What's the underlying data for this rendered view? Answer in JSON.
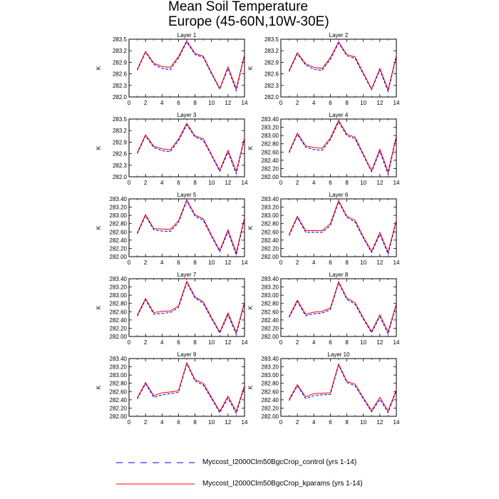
{
  "figure": {
    "title_line1": "Mean Soil Temperature",
    "title_line2": "Europe (45-60N,10W-30E)"
  },
  "legend": {
    "entries": [
      {
        "label": "Myccost_I2000Clm50BgcCrop_control (yrs 1-14)",
        "color": "#0000ff",
        "style": "dashed"
      },
      {
        "label": "Myccost_I2000Clm50BgcCrop_kparams (yrs 1-14)",
        "color": "#ff0000",
        "style": "solid"
      }
    ]
  },
  "chart_data": [
    {
      "type": "line",
      "title": "Layer 1",
      "ylabel": "K",
      "x": [
        0,
        1,
        2,
        3,
        4,
        5,
        6,
        7,
        8,
        9,
        10,
        11,
        12,
        13,
        14
      ],
      "xlim": [
        0,
        14
      ],
      "xticks": [
        "0",
        "2",
        "4",
        "6",
        "8",
        "10",
        "12",
        "14"
      ],
      "ylim": [
        282.0,
        283.5
      ],
      "yticks": [
        "282.0",
        "282.3",
        "282.6",
        "282.9",
        "283.2",
        "283.5"
      ],
      "series": [
        {
          "name": "Myccost_I2000Clm50BgcCrop_control (yrs 1-14)",
          "values": [
            null,
            282.69,
            283.16,
            282.85,
            282.74,
            282.71,
            283.01,
            283.43,
            283.1,
            283.03,
            282.6,
            282.2,
            282.74,
            282.16,
            283.08
          ]
        },
        {
          "name": "Myccost_I2000Clm50BgcCrop_kparams (yrs 1-14)",
          "values": [
            null,
            282.72,
            283.18,
            282.88,
            282.79,
            282.77,
            283.05,
            283.46,
            283.13,
            283.06,
            282.63,
            282.22,
            282.78,
            282.22,
            283.1
          ]
        }
      ]
    },
    {
      "type": "line",
      "title": "Layer 2",
      "ylabel": "K",
      "x": [
        0,
        1,
        2,
        3,
        4,
        5,
        6,
        7,
        8,
        9,
        10,
        11,
        12,
        13,
        14
      ],
      "xlim": [
        0,
        14
      ],
      "xticks": [
        "0",
        "2",
        "4",
        "6",
        "8",
        "10",
        "12",
        "14"
      ],
      "ylim": [
        282.0,
        283.5
      ],
      "yticks": [
        "282.0",
        "282.3",
        "282.6",
        "282.9",
        "283.2",
        "283.5"
      ],
      "series": [
        {
          "name": "Myccost_I2000Clm50BgcCrop_control (yrs 1-14)",
          "values": [
            null,
            282.66,
            283.12,
            282.83,
            282.72,
            282.69,
            282.98,
            283.4,
            283.07,
            283.0,
            282.59,
            282.19,
            282.7,
            282.14,
            283.05
          ]
        },
        {
          "name": "Myccost_I2000Clm50BgcCrop_kparams (yrs 1-14)",
          "values": [
            null,
            282.69,
            283.15,
            282.86,
            282.77,
            282.74,
            283.02,
            283.43,
            283.1,
            283.04,
            282.62,
            282.21,
            282.74,
            282.19,
            283.08
          ]
        }
      ]
    },
    {
      "type": "line",
      "title": "Layer 3",
      "ylabel": "K",
      "x": [
        0,
        1,
        2,
        3,
        4,
        5,
        6,
        7,
        8,
        9,
        10,
        11,
        12,
        13,
        14
      ],
      "xlim": [
        0,
        14
      ],
      "xticks": [
        "0",
        "2",
        "4",
        "6",
        "8",
        "10",
        "12",
        "14"
      ],
      "ylim": [
        282.0,
        283.5
      ],
      "yticks": [
        "282.0",
        "282.3",
        "282.6",
        "282.9",
        "283.2",
        "283.5"
      ],
      "series": [
        {
          "name": "Myccost_I2000Clm50BgcCrop_control (yrs 1-14)",
          "values": [
            null,
            282.6,
            283.06,
            282.76,
            282.68,
            282.65,
            282.94,
            283.35,
            283.03,
            282.95,
            282.55,
            282.14,
            282.64,
            282.08,
            282.99
          ]
        },
        {
          "name": "Myccost_I2000Clm50BgcCrop_kparams (yrs 1-14)",
          "values": [
            null,
            282.63,
            283.09,
            282.79,
            282.73,
            282.7,
            282.98,
            283.39,
            283.06,
            282.99,
            282.58,
            282.17,
            282.69,
            282.14,
            283.02
          ]
        }
      ]
    },
    {
      "type": "line",
      "title": "Layer 4",
      "ylabel": "K",
      "x": [
        0,
        1,
        2,
        3,
        4,
        5,
        6,
        7,
        8,
        9,
        10,
        11,
        12,
        13,
        14
      ],
      "xlim": [
        0,
        14
      ],
      "xticks": [
        "0",
        "2",
        "4",
        "6",
        "8",
        "10",
        "12",
        "14"
      ],
      "ylim": [
        282.0,
        283.4
      ],
      "yticks": [
        "282.00",
        "282.20",
        "282.40",
        "282.60",
        "282.80",
        "283.00",
        "283.20",
        "283.40"
      ],
      "series": [
        {
          "name": "Myccost_I2000Clm50BgcCrop_control (yrs 1-14)",
          "values": [
            null,
            282.58,
            283.03,
            282.72,
            282.66,
            282.64,
            282.9,
            283.33,
            283.0,
            282.92,
            282.52,
            282.12,
            282.62,
            282.06,
            282.96
          ]
        },
        {
          "name": "Myccost_I2000Clm50BgcCrop_kparams (yrs 1-14)",
          "values": [
            null,
            282.61,
            283.06,
            282.75,
            282.71,
            282.69,
            282.94,
            283.37,
            283.03,
            282.96,
            282.55,
            282.15,
            282.67,
            282.12,
            282.99
          ]
        }
      ]
    },
    {
      "type": "line",
      "title": "Layer 5",
      "ylabel": "K",
      "x": [
        0,
        1,
        2,
        3,
        4,
        5,
        6,
        7,
        8,
        9,
        10,
        11,
        12,
        13,
        14
      ],
      "xlim": [
        0,
        14
      ],
      "xticks": [
        "0",
        "2",
        "4",
        "6",
        "8",
        "10",
        "12",
        "14"
      ],
      "ylim": [
        282.0,
        283.4
      ],
      "yticks": [
        "282.00",
        "282.20",
        "282.40",
        "282.60",
        "282.80",
        "283.00",
        "283.20",
        "283.40"
      ],
      "series": [
        {
          "name": "Myccost_I2000Clm50BgcCrop_control (yrs 1-14)",
          "values": [
            null,
            282.55,
            282.99,
            282.65,
            282.62,
            282.61,
            282.83,
            283.35,
            282.98,
            282.88,
            282.49,
            282.12,
            282.6,
            282.04,
            282.92
          ]
        },
        {
          "name": "Myccost_I2000Clm50BgcCrop_kparams (yrs 1-14)",
          "values": [
            null,
            282.58,
            283.02,
            282.68,
            282.67,
            282.66,
            282.87,
            283.38,
            283.01,
            282.92,
            282.52,
            282.15,
            282.65,
            282.1,
            282.95
          ]
        }
      ]
    },
    {
      "type": "line",
      "title": "Layer 6",
      "ylabel": "K",
      "x": [
        0,
        1,
        2,
        3,
        4,
        5,
        6,
        7,
        8,
        9,
        10,
        11,
        12,
        13,
        14
      ],
      "xlim": [
        0,
        14
      ],
      "xticks": [
        "0",
        "2",
        "4",
        "6",
        "8",
        "10",
        "12",
        "14"
      ],
      "ylim": [
        282.0,
        283.4
      ],
      "yticks": [
        "282.00",
        "282.20",
        "282.40",
        "282.60",
        "282.80",
        "283.00",
        "283.20",
        "283.40"
      ],
      "series": [
        {
          "name": "Myccost_I2000Clm50BgcCrop_control (yrs 1-14)",
          "values": [
            null,
            282.51,
            282.95,
            282.59,
            282.59,
            282.59,
            282.75,
            283.33,
            282.95,
            282.84,
            282.45,
            282.1,
            282.54,
            282.06,
            282.86
          ]
        },
        {
          "name": "Myccost_I2000Clm50BgcCrop_kparams (yrs 1-14)",
          "values": [
            null,
            282.54,
            282.98,
            282.63,
            282.63,
            282.63,
            282.8,
            283.36,
            282.98,
            282.88,
            282.48,
            282.13,
            282.59,
            282.11,
            282.89
          ]
        }
      ]
    },
    {
      "type": "line",
      "title": "Layer 7",
      "ylabel": "K",
      "x": [
        0,
        1,
        2,
        3,
        4,
        5,
        6,
        7,
        8,
        9,
        10,
        11,
        12,
        13,
        14
      ],
      "xlim": [
        0,
        14
      ],
      "xticks": [
        "0",
        "2",
        "4",
        "6",
        "8",
        "10",
        "12",
        "14"
      ],
      "ylim": [
        282.0,
        283.4
      ],
      "yticks": [
        "282.00",
        "282.20",
        "282.40",
        "282.60",
        "282.80",
        "283.00",
        "283.20",
        "283.40"
      ],
      "series": [
        {
          "name": "Myccost_I2000Clm50BgcCrop_control (yrs 1-14)",
          "values": [
            null,
            282.49,
            282.89,
            282.54,
            282.56,
            282.58,
            282.7,
            283.31,
            282.93,
            282.8,
            282.43,
            282.08,
            282.52,
            282.05,
            282.81
          ]
        },
        {
          "name": "Myccost_I2000Clm50BgcCrop_kparams (yrs 1-14)",
          "values": [
            null,
            282.52,
            282.92,
            282.58,
            282.61,
            282.62,
            282.74,
            283.34,
            282.96,
            282.84,
            282.46,
            282.11,
            282.57,
            282.1,
            282.84
          ]
        }
      ]
    },
    {
      "type": "line",
      "title": "Layer 8",
      "ylabel": "K",
      "x": [
        0,
        1,
        2,
        3,
        4,
        5,
        6,
        7,
        8,
        9,
        10,
        11,
        12,
        13,
        14
      ],
      "xlim": [
        0,
        14
      ],
      "xticks": [
        "0",
        "2",
        "4",
        "6",
        "8",
        "10",
        "12",
        "14"
      ],
      "ylim": [
        282.0,
        283.4
      ],
      "yticks": [
        "282.00",
        "282.20",
        "282.40",
        "282.60",
        "282.80",
        "283.00",
        "283.20",
        "283.40"
      ],
      "series": [
        {
          "name": "Myccost_I2000Clm50BgcCrop_control (yrs 1-14)",
          "values": [
            null,
            282.46,
            282.85,
            282.5,
            282.55,
            282.57,
            282.65,
            283.3,
            282.9,
            282.78,
            282.42,
            282.09,
            282.48,
            282.06,
            282.77
          ]
        },
        {
          "name": "Myccost_I2000Clm50BgcCrop_kparams (yrs 1-14)",
          "values": [
            null,
            282.49,
            282.88,
            282.54,
            282.59,
            282.61,
            282.69,
            283.33,
            282.93,
            282.82,
            282.45,
            282.12,
            282.53,
            282.11,
            282.8
          ]
        }
      ]
    },
    {
      "type": "line",
      "title": "Layer 9",
      "ylabel": "K",
      "x": [
        0,
        1,
        2,
        3,
        4,
        5,
        6,
        7,
        8,
        9,
        10,
        11,
        12,
        13,
        14
      ],
      "xlim": [
        0,
        14
      ],
      "xticks": [
        "0",
        "2",
        "4",
        "6",
        "8",
        "10",
        "12",
        "14"
      ],
      "ylim": [
        282.0,
        283.4
      ],
      "yticks": [
        "282.00",
        "282.20",
        "282.40",
        "282.60",
        "282.80",
        "283.00",
        "283.20",
        "283.40"
      ],
      "series": [
        {
          "name": "Myccost_I2000Clm50BgcCrop_control (yrs 1-14)",
          "values": [
            null,
            282.42,
            282.79,
            282.46,
            282.52,
            282.55,
            282.58,
            283.27,
            282.86,
            282.76,
            282.43,
            282.09,
            282.44,
            282.07,
            282.72
          ]
        },
        {
          "name": "Myccost_I2000Clm50BgcCrop_kparams (yrs 1-14)",
          "values": [
            null,
            282.45,
            282.82,
            282.5,
            282.57,
            282.59,
            282.62,
            283.3,
            282.89,
            282.8,
            282.46,
            282.12,
            282.49,
            282.12,
            282.75
          ]
        }
      ]
    },
    {
      "type": "line",
      "title": "Layer 10",
      "ylabel": "K",
      "x": [
        0,
        1,
        2,
        3,
        4,
        5,
        6,
        7,
        8,
        9,
        10,
        11,
        12,
        13,
        14
      ],
      "xlim": [
        0,
        14
      ],
      "xticks": [
        "0",
        "2",
        "4",
        "6",
        "8",
        "10",
        "12",
        "14"
      ],
      "ylim": [
        282.0,
        283.4
      ],
      "yticks": [
        "282.00",
        "282.20",
        "282.40",
        "282.60",
        "282.80",
        "283.00",
        "283.20",
        "283.40"
      ],
      "series": [
        {
          "name": "Myccost_I2000Clm50BgcCrop_control (yrs 1-14)",
          "values": [
            null,
            282.38,
            282.74,
            282.43,
            282.5,
            282.52,
            282.53,
            283.24,
            282.82,
            282.74,
            282.42,
            282.11,
            282.41,
            282.09,
            282.62
          ]
        },
        {
          "name": "Myccost_I2000Clm50BgcCrop_kparams (yrs 1-14)",
          "values": [
            null,
            282.41,
            282.77,
            282.47,
            282.55,
            282.56,
            282.57,
            283.27,
            282.85,
            282.78,
            282.45,
            282.14,
            282.46,
            282.13,
            282.65
          ]
        }
      ]
    }
  ]
}
